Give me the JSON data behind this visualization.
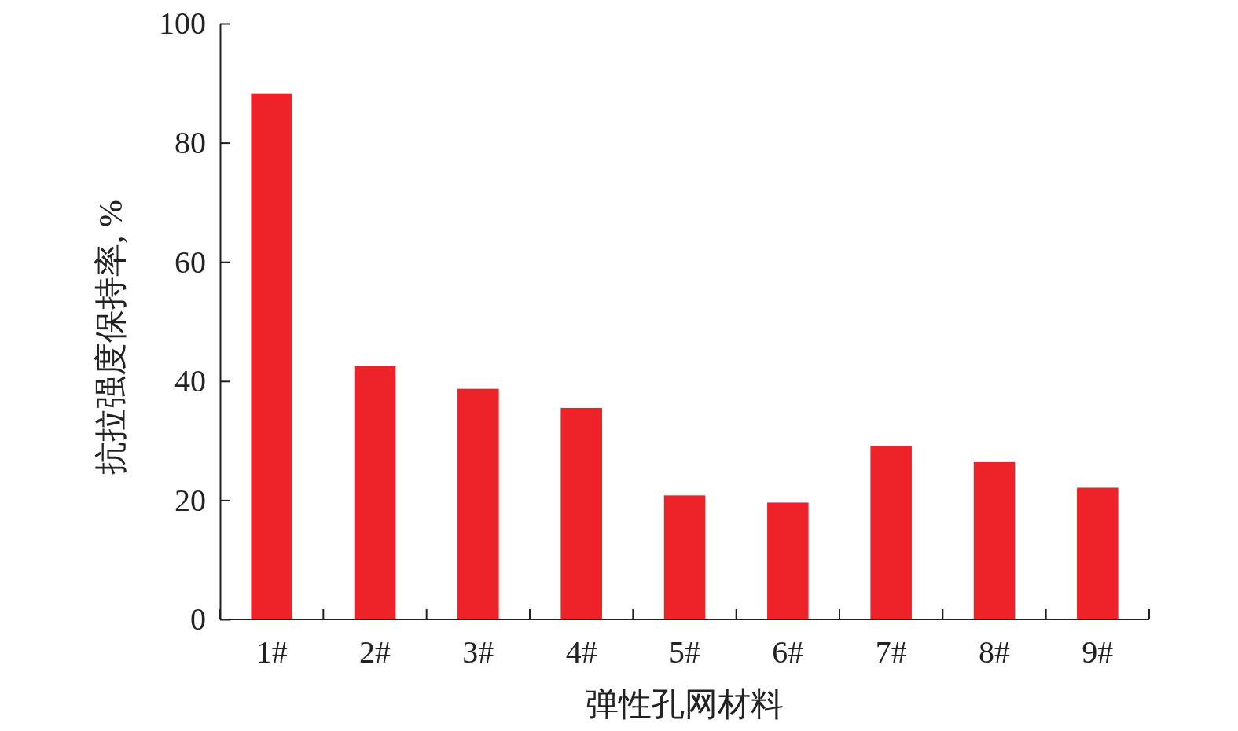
{
  "chart_data": {
    "type": "bar",
    "xlabel": "弹性孔网材料",
    "ylabel": "抗拉强度保持率, %",
    "categories": [
      "1#",
      "2#",
      "3#",
      "4#",
      "5#",
      "6#",
      "7#",
      "8#",
      "9#"
    ],
    "values": [
      88.3,
      42.5,
      38.7,
      35.5,
      20.8,
      19.6,
      29.1,
      26.4,
      22.1
    ],
    "color": "#ee2229",
    "ylim": [
      0,
      100
    ],
    "yticks": [
      0,
      20,
      40,
      60,
      80,
      100
    ],
    "grid": false
  }
}
